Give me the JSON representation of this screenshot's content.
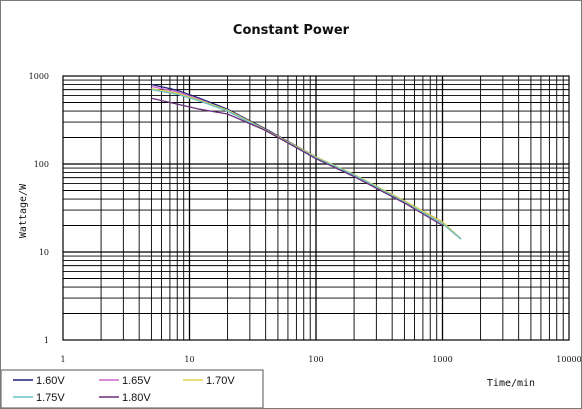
{
  "chart_data": {
    "type": "line",
    "title": "Constant Power",
    "xlabel": "Time/min",
    "ylabel": "Wattage/W",
    "x_scale": "log",
    "y_scale": "log",
    "xlim": [
      1,
      10000
    ],
    "ylim": [
      1,
      1000
    ],
    "x_ticks": [
      "1",
      "10",
      "100",
      "1000",
      "10000"
    ],
    "y_ticks": [
      "1",
      "10",
      "100",
      "1000"
    ],
    "grid": true,
    "legend_position": "bottom-left",
    "series": [
      {
        "name": "1.60V",
        "color": "#1f1f7a",
        "x": [
          5,
          8,
          12,
          20,
          40,
          100,
          200,
          500,
          1000,
          1400
        ],
        "y": [
          800,
          690,
          560,
          420,
          250,
          120,
          75,
          38,
          22,
          14
        ]
      },
      {
        "name": "1.65V",
        "color": "#cc66cc",
        "x": [
          5,
          8,
          12,
          20,
          40,
          100,
          200,
          500,
          1000,
          1400
        ],
        "y": [
          760,
          660,
          540,
          400,
          240,
          118,
          74,
          37,
          21,
          14
        ]
      },
      {
        "name": "1.70V",
        "color": "#e6d24a",
        "x": [
          5,
          8,
          12,
          20,
          40,
          100,
          200,
          500,
          1000,
          1400
        ],
        "y": [
          720,
          640,
          530,
          410,
          245,
          120,
          76,
          38,
          22,
          14
        ]
      },
      {
        "name": "1.75V",
        "color": "#66c2c2",
        "x": [
          5,
          8,
          12,
          20,
          40,
          100,
          200,
          500,
          1000,
          1400
        ],
        "y": [
          700,
          620,
          520,
          400,
          240,
          118,
          75,
          37,
          21,
          14
        ]
      },
      {
        "name": "1.80V",
        "color": "#6a2f7a",
        "x": [
          5,
          8,
          12,
          20,
          40,
          100,
          200,
          500,
          1000
        ],
        "y": [
          560,
          480,
          420,
          370,
          240,
          115,
          72,
          36,
          20
        ]
      }
    ]
  }
}
